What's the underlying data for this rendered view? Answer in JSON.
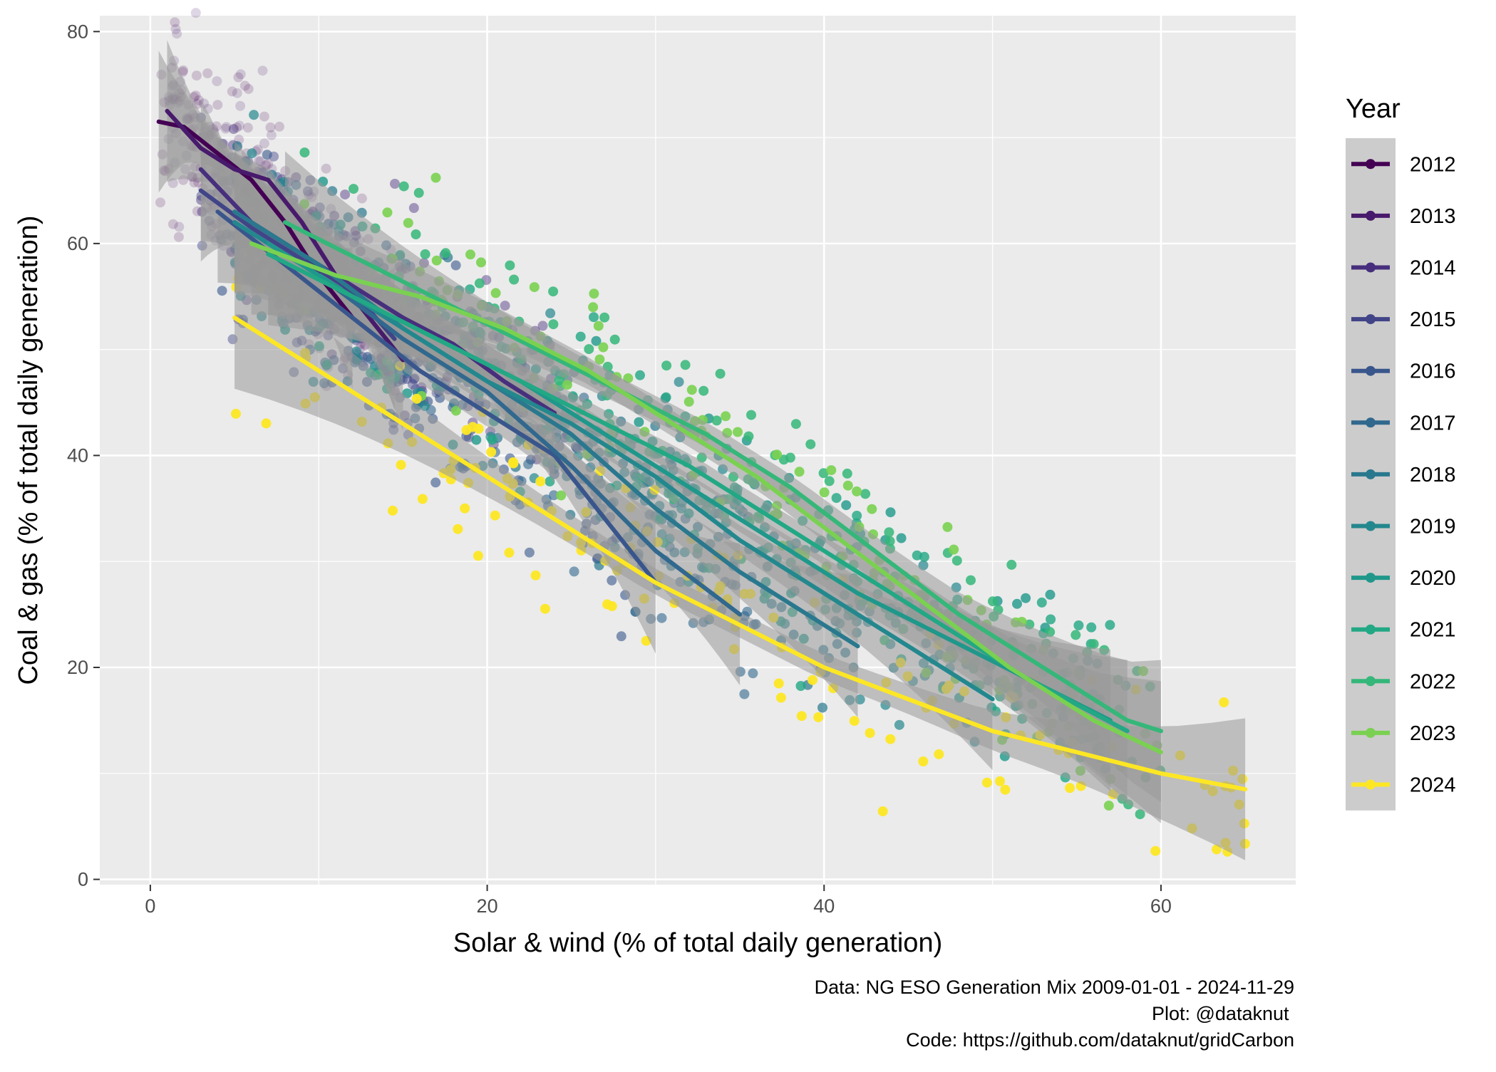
{
  "chart_data": {
    "type": "scatter",
    "xlabel": "Solar & wind (% of total daily generation)",
    "ylabel": "Coal & gas (% of total daily generation)",
    "xlim": [
      -3,
      68
    ],
    "ylim": [
      -0.5,
      81.5
    ],
    "xticks": [
      "0",
      "20",
      "40",
      "60"
    ],
    "yticks": [
      "0",
      "20",
      "40",
      "60",
      "80"
    ],
    "grid": true,
    "legend": {
      "title": "Year",
      "position": "right"
    },
    "smoothing": "loess trend line per year with grey confidence band",
    "caption": [
      "Data: NG ESO Generation Mix 2009-01-01 - 2024-11-29",
      "Plot: @dataknut ",
      "Code: https://github.com/dataknut/gridCarbon"
    ],
    "series": [
      {
        "name": "2012",
        "color": "#440154",
        "point_opacity": 0.18,
        "x_range": [
          0.5,
          13
        ],
        "trend": [
          [
            0.5,
            71.5
          ],
          [
            2,
            71
          ],
          [
            4,
            68.5
          ],
          [
            6,
            66
          ],
          [
            8,
            62
          ],
          [
            10,
            57
          ],
          [
            12,
            53
          ]
        ]
      },
      {
        "name": "2013",
        "color": "#481A6C",
        "point_opacity": 0.18,
        "x_range": [
          1,
          15
        ],
        "trend": [
          [
            1,
            72.5
          ],
          [
            3,
            69
          ],
          [
            5,
            67
          ],
          [
            7,
            66
          ],
          [
            9,
            62
          ],
          [
            11,
            57
          ],
          [
            13,
            53
          ],
          [
            15,
            49
          ]
        ]
      },
      {
        "name": "2014",
        "color": "#472F7D",
        "point_opacity": 0.45,
        "x_range": [
          3,
          24
        ],
        "trend": [
          [
            3,
            67
          ],
          [
            6,
            62
          ],
          [
            9,
            59
          ],
          [
            12,
            56
          ],
          [
            15,
            53
          ],
          [
            18,
            50.5
          ],
          [
            21,
            47
          ],
          [
            24,
            44
          ]
        ]
      },
      {
        "name": "2015",
        "color": "#414487",
        "point_opacity": 0.45,
        "x_range": [
          3,
          17
        ],
        "trend": [
          [
            3,
            65
          ],
          [
            6,
            61.5
          ],
          [
            9,
            58.5
          ],
          [
            12,
            55.5
          ],
          [
            14.5,
            51
          ]
        ]
      },
      {
        "name": "2016",
        "color": "#39568C",
        "point_opacity": 0.6,
        "x_range": [
          4,
          30
        ],
        "trend": [
          [
            4,
            63
          ],
          [
            8,
            58
          ],
          [
            12,
            53
          ],
          [
            16,
            48
          ],
          [
            20,
            44
          ],
          [
            24,
            40
          ],
          [
            27,
            34
          ],
          [
            30,
            28
          ]
        ]
      },
      {
        "name": "2017",
        "color": "#31688E",
        "point_opacity": 0.6,
        "x_range": [
          5,
          36
        ],
        "trend": [
          [
            5,
            62
          ],
          [
            10,
            57
          ],
          [
            15,
            51
          ],
          [
            20,
            46
          ],
          [
            25,
            39
          ],
          [
            30,
            31
          ],
          [
            35,
            25
          ]
        ]
      },
      {
        "name": "2018",
        "color": "#2A788E",
        "point_opacity": 0.7,
        "x_range": [
          5,
          42
        ],
        "trend": [
          [
            5,
            63
          ],
          [
            10,
            58
          ],
          [
            15,
            52
          ],
          [
            20,
            47
          ],
          [
            25,
            42
          ],
          [
            30,
            35
          ],
          [
            35,
            29
          ],
          [
            40,
            24
          ],
          [
            42,
            22
          ]
        ]
      },
      {
        "name": "2019",
        "color": "#23888E",
        "point_opacity": 0.7,
        "x_range": [
          5,
          50
        ],
        "trend": [
          [
            5,
            62
          ],
          [
            10,
            57
          ],
          [
            15,
            52
          ],
          [
            20,
            47
          ],
          [
            25,
            43
          ],
          [
            30,
            38
          ],
          [
            35,
            32
          ],
          [
            40,
            27
          ],
          [
            45,
            22
          ],
          [
            50,
            17
          ]
        ]
      },
      {
        "name": "2020",
        "color": "#1F988B",
        "point_opacity": 0.8,
        "x_range": [
          7,
          57
        ],
        "trend": [
          [
            7,
            60
          ],
          [
            12,
            55
          ],
          [
            17,
            51
          ],
          [
            22,
            47
          ],
          [
            27,
            42
          ],
          [
            32,
            37
          ],
          [
            37,
            32
          ],
          [
            42,
            27
          ],
          [
            47,
            23
          ],
          [
            52,
            19
          ],
          [
            57,
            15
          ]
        ]
      },
      {
        "name": "2021",
        "color": "#22A884",
        "point_opacity": 0.8,
        "x_range": [
          7,
          58
        ],
        "trend": [
          [
            7,
            59
          ],
          [
            12,
            55
          ],
          [
            17,
            51
          ],
          [
            22,
            47
          ],
          [
            27,
            43
          ],
          [
            32,
            39
          ],
          [
            37,
            34
          ],
          [
            42,
            29
          ],
          [
            47,
            24
          ],
          [
            52,
            19
          ],
          [
            58,
            14
          ]
        ]
      },
      {
        "name": "2022",
        "color": "#35B779",
        "point_opacity": 0.85,
        "x_range": [
          8,
          60
        ],
        "trend": [
          [
            8,
            62
          ],
          [
            13,
            58
          ],
          [
            18,
            54
          ],
          [
            23,
            50
          ],
          [
            28,
            46
          ],
          [
            33,
            42
          ],
          [
            38,
            37
          ],
          [
            43,
            31
          ],
          [
            48,
            25
          ],
          [
            53,
            20
          ],
          [
            58,
            15
          ],
          [
            60,
            14
          ]
        ]
      },
      {
        "name": "2023",
        "color": "#7AD151",
        "point_opacity": 0.9,
        "x_range": [
          6,
          60
        ],
        "trend": [
          [
            6,
            60
          ],
          [
            11,
            57
          ],
          [
            16,
            55
          ],
          [
            21,
            52
          ],
          [
            26,
            48
          ],
          [
            31,
            43
          ],
          [
            36,
            38
          ],
          [
            41,
            32
          ],
          [
            46,
            26
          ],
          [
            51,
            20
          ],
          [
            56,
            15
          ],
          [
            60,
            12
          ]
        ]
      },
      {
        "name": "2024",
        "color": "#FDE725",
        "point_opacity": 0.95,
        "x_range": [
          5,
          65
        ],
        "trend": [
          [
            5,
            53
          ],
          [
            10,
            48
          ],
          [
            15,
            43
          ],
          [
            20,
            38
          ],
          [
            25,
            33
          ],
          [
            30,
            28
          ],
          [
            35,
            24
          ],
          [
            40,
            20
          ],
          [
            45,
            17
          ],
          [
            50,
            14
          ],
          [
            55,
            12
          ],
          [
            60,
            10
          ],
          [
            65,
            8.5
          ]
        ]
      }
    ]
  }
}
